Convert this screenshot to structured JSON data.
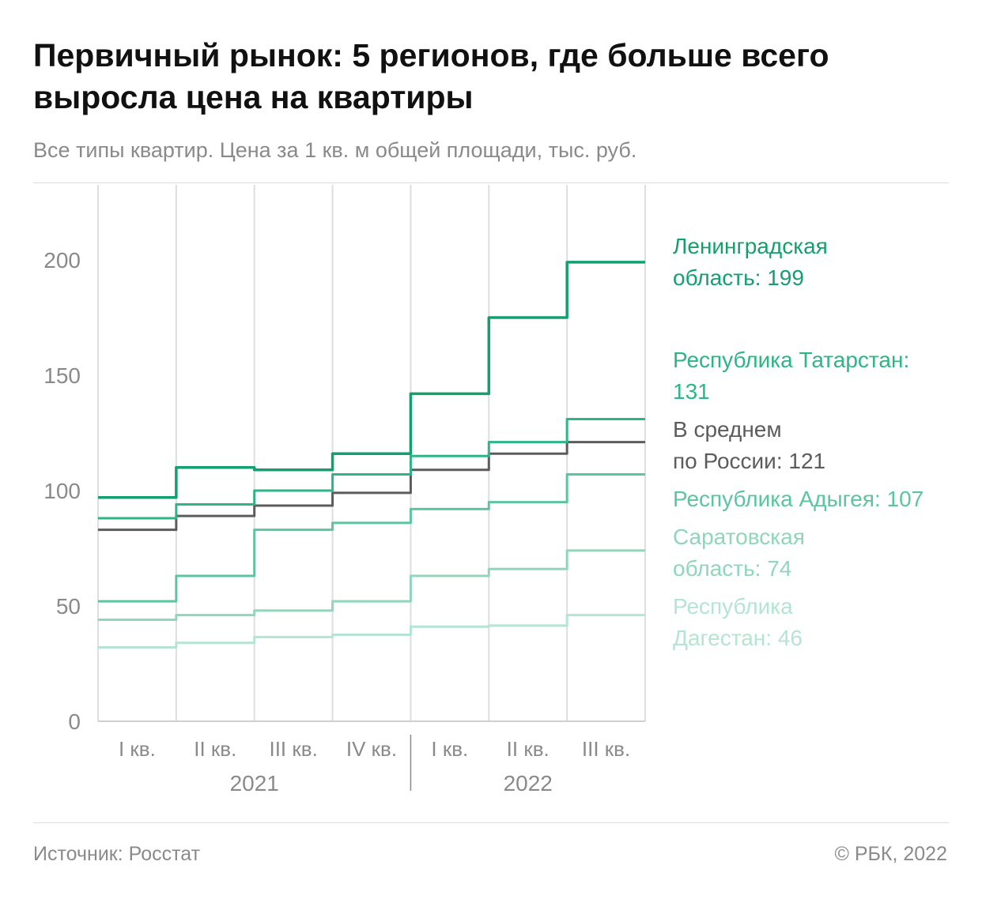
{
  "title": "Первичный рынок: 5 регионов, где больше всего выросла цена на квартиры",
  "subtitle": "Все типы квартир. Цена за 1 кв. м общей площади, тыс. руб.",
  "footer": {
    "source": "Источник: Росстат",
    "copyright": "© РБК, 2022"
  },
  "chart_data": {
    "type": "line",
    "step": true,
    "categories": [
      "I кв.",
      "II кв.",
      "III кв.",
      "IV кв.",
      "I кв.",
      "II кв.",
      "III кв."
    ],
    "year_groups": [
      {
        "label": "2021",
        "count": 4
      },
      {
        "label": "2022",
        "count": 3
      }
    ],
    "ylim": [
      0,
      200
    ],
    "yticks": [
      0,
      50,
      100,
      150,
      200
    ],
    "grid": true,
    "legend": "right",
    "series": [
      {
        "name": "Республика Дагестан: 46",
        "label_lines": [
          "Республика",
          "Дагестан: 46"
        ],
        "values": [
          32,
          34,
          36.5,
          37.5,
          41,
          41.5,
          46
        ],
        "color": "#b5e4d2",
        "stroke": 3
      },
      {
        "name": "Саратовская область: 74",
        "label_lines": [
          "Саратовская",
          "область: 74"
        ],
        "values": [
          44,
          46,
          48,
          52,
          63,
          66,
          74
        ],
        "color": "#8fd6bb",
        "stroke": 3
      },
      {
        "name": "Республика Адыгея: 107",
        "label_lines": [
          "Республика Адыгея: 107"
        ],
        "values": [
          52,
          63,
          83,
          86,
          92,
          95,
          107
        ],
        "color": "#5cc59f",
        "stroke": 3
      },
      {
        "name": "В среднем по России: 121",
        "label_lines": [
          "В среднем",
          "по России: 121"
        ],
        "values": [
          83,
          89,
          93.5,
          99,
          109,
          116,
          121
        ],
        "color": "#5c5c5c",
        "stroke": 3
      },
      {
        "name": "Республика Татарстан: 131",
        "label_lines": [
          "Республика Татарстан:",
          "131"
        ],
        "values": [
          88,
          94,
          100,
          107,
          115,
          121,
          131
        ],
        "color": "#2eb585",
        "stroke": 3
      },
      {
        "name": "Ленинградская область: 199",
        "label_lines": [
          "Ленинградская",
          "область: 199"
        ],
        "values": [
          97,
          110,
          109,
          116,
          142,
          175,
          199
        ],
        "color": "#14a06e",
        "stroke": 3.5
      }
    ]
  }
}
